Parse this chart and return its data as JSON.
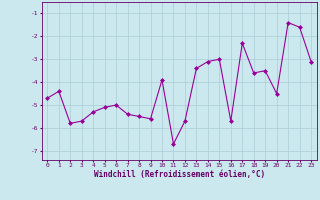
{
  "xlabel": "Windchill (Refroidissement éolien,°C)",
  "x": [
    0,
    1,
    2,
    3,
    4,
    5,
    6,
    7,
    8,
    9,
    10,
    11,
    12,
    13,
    14,
    15,
    16,
    17,
    18,
    19,
    20,
    21,
    22,
    23
  ],
  "y": [
    -4.7,
    -4.4,
    -5.8,
    -5.7,
    -5.3,
    -5.1,
    -5.0,
    -5.4,
    -5.5,
    -5.6,
    -3.9,
    -6.7,
    -5.7,
    -3.4,
    -3.1,
    -3.0,
    -5.7,
    -2.3,
    -3.6,
    -3.5,
    -4.5,
    -1.4,
    -1.6,
    -3.1
  ],
  "line_color": "#990099",
  "marker": "D",
  "markersize": 2.0,
  "linewidth": 0.8,
  "bg_color": "#cce8ef",
  "grid_color": "#aacdd6",
  "xlim": [
    -0.5,
    23.5
  ],
  "ylim": [
    -7.4,
    -0.5
  ],
  "yticks": [
    -7,
    -6,
    -5,
    -4,
    -3,
    -2,
    -1
  ],
  "xticks": [
    0,
    1,
    2,
    3,
    4,
    5,
    6,
    7,
    8,
    9,
    10,
    11,
    12,
    13,
    14,
    15,
    16,
    17,
    18,
    19,
    20,
    21,
    22,
    23
  ],
  "tick_labelsize": 4.5,
  "xlabel_fontsize": 5.5,
  "tick_color": "#660066",
  "label_color": "#660066"
}
